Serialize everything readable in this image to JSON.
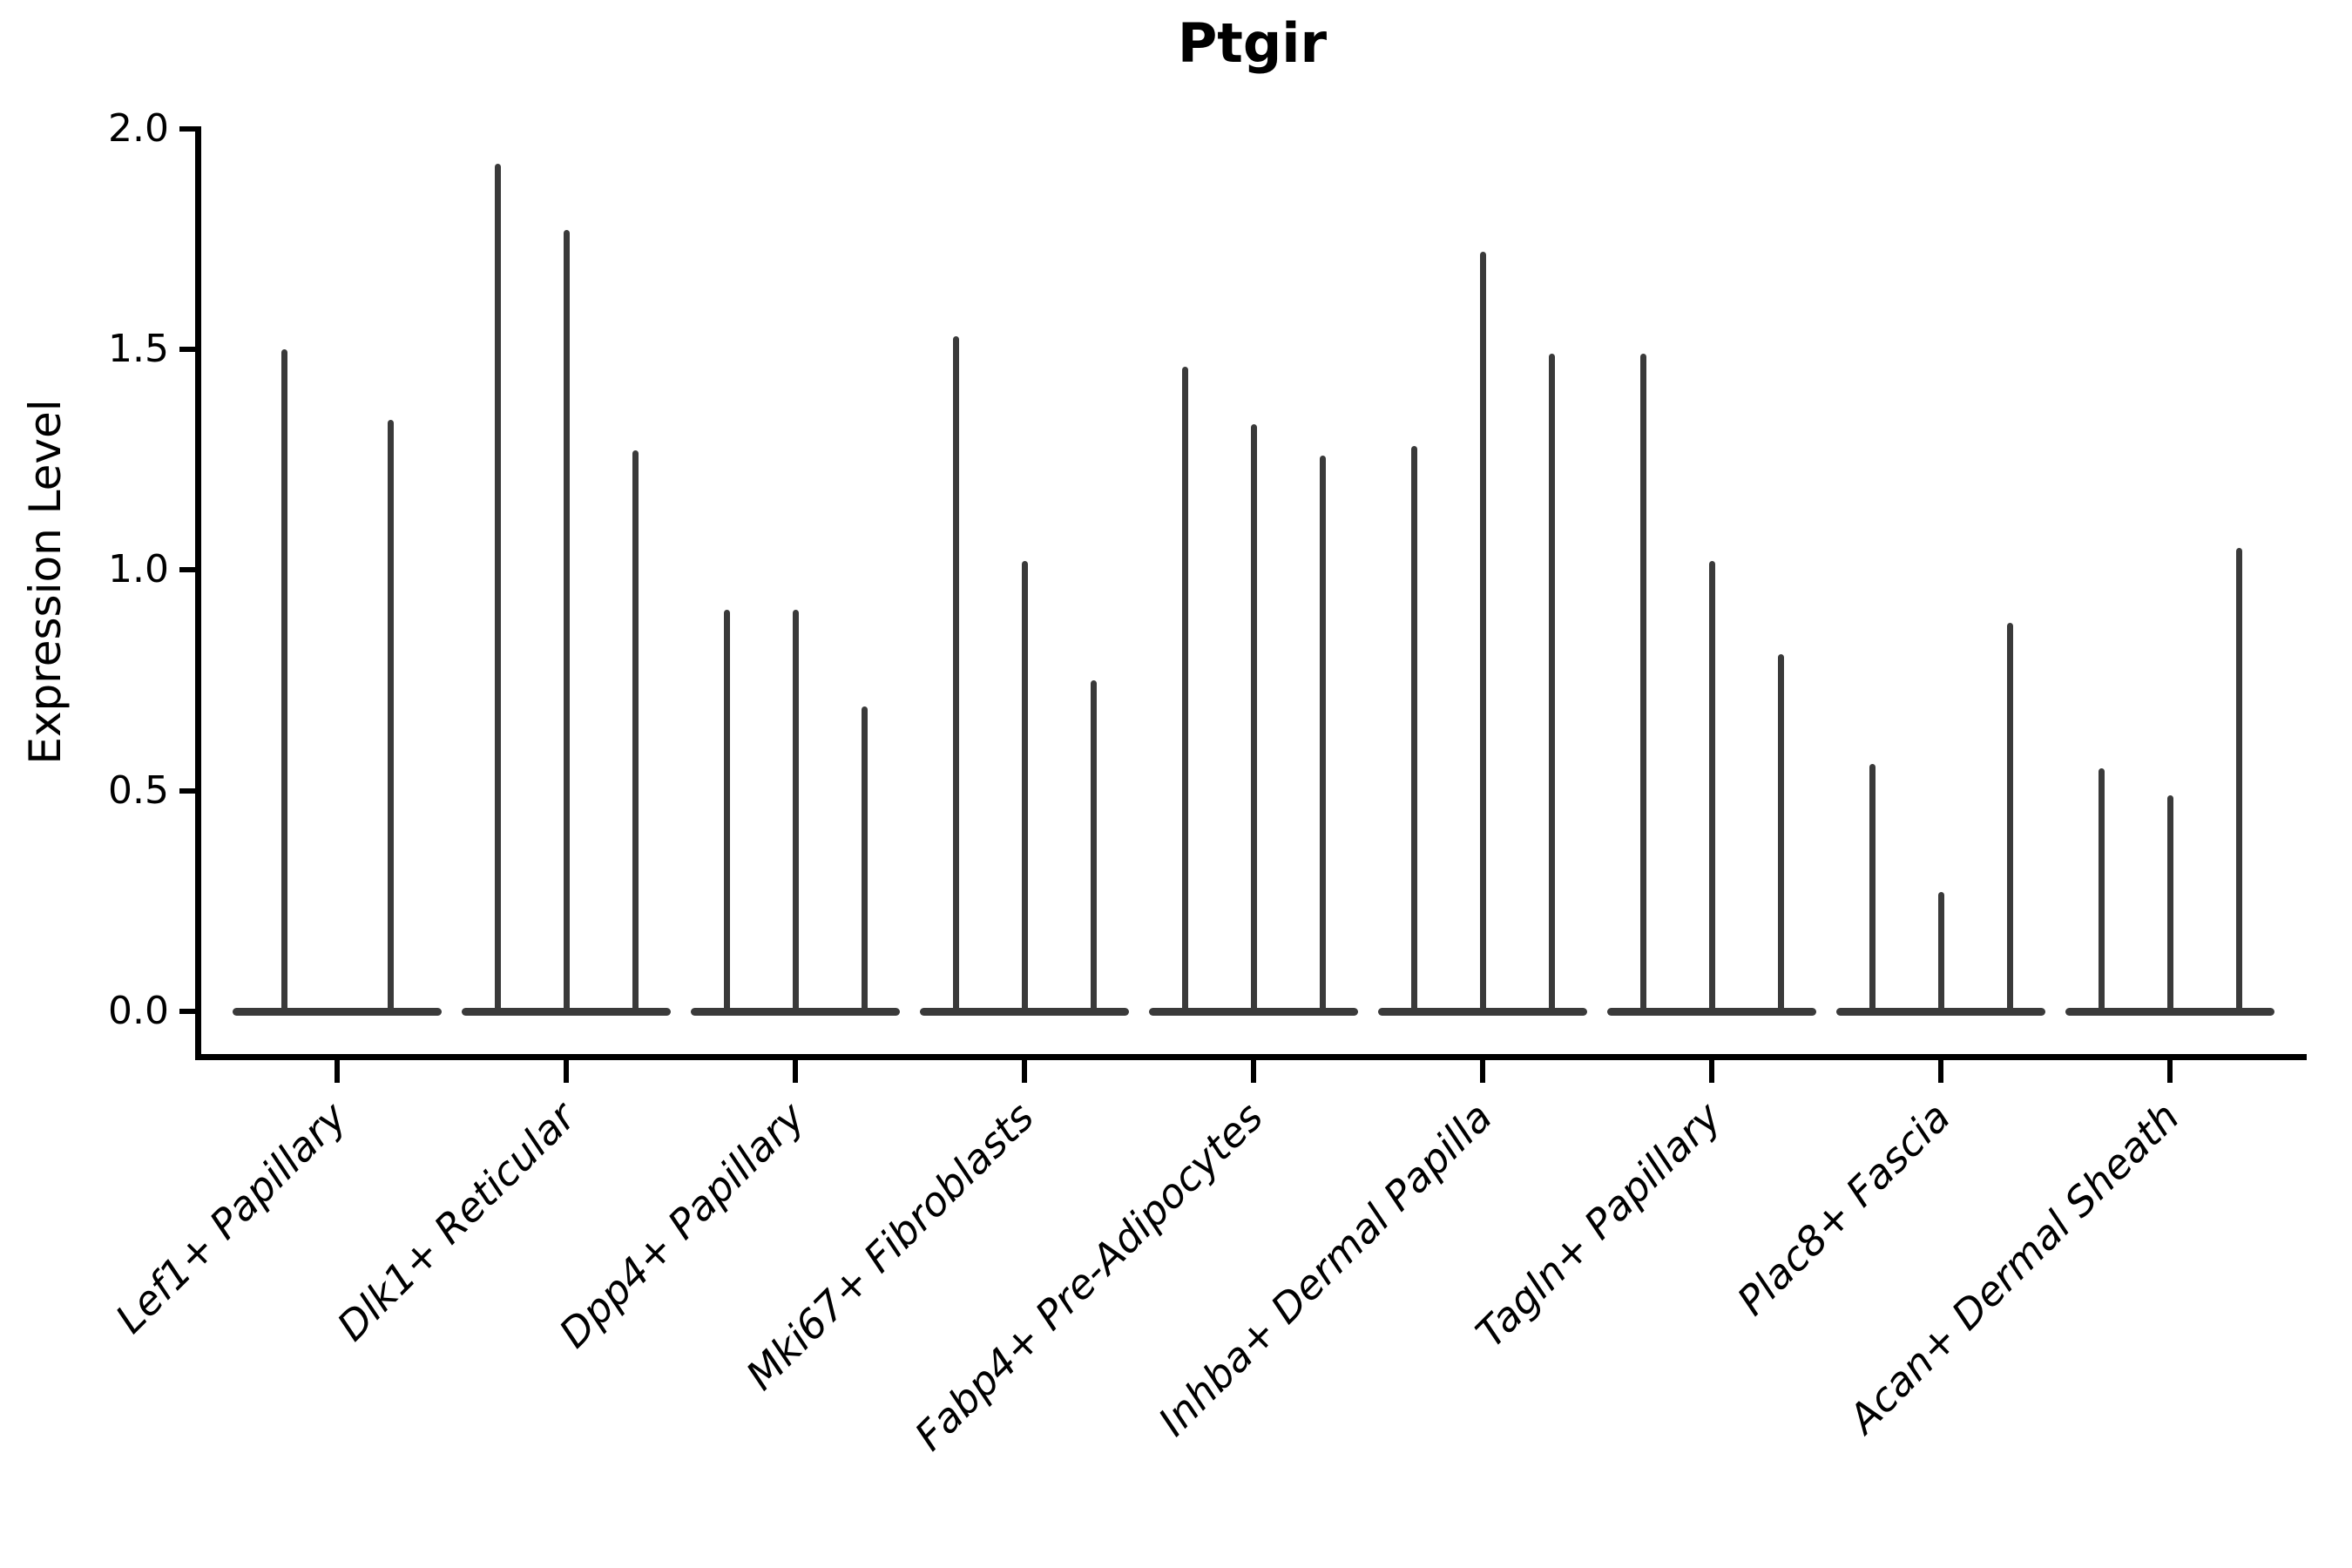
{
  "chart_data": {
    "type": "violin",
    "title": "Ptgir",
    "xlabel": "",
    "ylabel": "Expression Level",
    "ylim": [
      0,
      2.0
    ],
    "ytick_labels": [
      "0.0",
      "0.5",
      "1.0",
      "1.5",
      "2.0"
    ],
    "ytick_values": [
      0,
      0.5,
      1.0,
      1.5,
      2.0
    ],
    "grid": false,
    "legend": "none",
    "violin_baseline": 0.0,
    "categories": [
      "Lef1+ Papillary",
      "Dlk1+ Reticular",
      "Dpp4+ Papillary",
      "Mki67+ Fibroblasts",
      "Fabp4+ Pre-Adipocytes",
      "Inhba+ Dermal Papilla",
      "Tagln+ Papillary",
      "Plac8+ Fascia",
      "Acan+ Dermal Sheath"
    ],
    "groups": [
      {
        "category": "Lef1+ Papillary",
        "violin_maxima": [
          1.5,
          1.34
        ]
      },
      {
        "category": "Dlk1+ Reticular",
        "violin_maxima": [
          1.92,
          1.77,
          1.27
        ]
      },
      {
        "category": "Dpp4+ Papillary",
        "violin_maxima": [
          0.91,
          0.91,
          0.69
        ]
      },
      {
        "category": "Mki67+ Fibroblasts",
        "violin_maxima": [
          1.53,
          1.02,
          0.75
        ]
      },
      {
        "category": "Fabp4+ Pre-Adipocytes",
        "violin_maxima": [
          1.46,
          1.33,
          1.26
        ]
      },
      {
        "category": "Inhba+ Dermal Papilla",
        "violin_maxima": [
          1.28,
          1.72,
          1.49
        ]
      },
      {
        "category": "Tagln+ Papillary",
        "violin_maxima": [
          1.49,
          1.02,
          0.81
        ]
      },
      {
        "category": "Plac8+ Fascia",
        "violin_maxima": [
          0.56,
          0.27,
          0.88
        ]
      },
      {
        "category": "Acan+ Dermal Sheath",
        "violin_maxima": [
          0.55,
          0.49,
          1.05
        ]
      }
    ],
    "colors": {
      "violin": "#3a3a3a",
      "axis": "#000000",
      "text": "#000000",
      "background": "#ffffff"
    }
  }
}
